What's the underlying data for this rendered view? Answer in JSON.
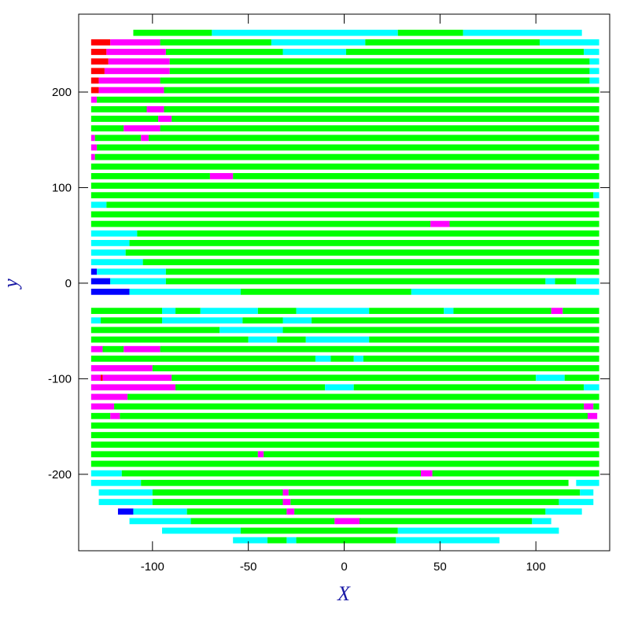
{
  "chart_data": {
    "type": "strip-map",
    "xlabel": "X",
    "ylabel": "y",
    "xlim": [
      -138.5,
      138.5
    ],
    "ylim": [
      -280,
      281.5
    ],
    "xticks": [
      -100,
      -50,
      0,
      50,
      100
    ],
    "yticks": [
      -200,
      -100,
      0,
      100,
      200
    ],
    "strip_height": 6.4,
    "rows": [
      {
        "y": 262,
        "segments": [
          [
            -110,
            -69,
            "#00ff00"
          ],
          [
            -69,
            28,
            "#00ffff"
          ],
          [
            28,
            62,
            "#00ff00"
          ],
          [
            62,
            124,
            "#00ffff"
          ]
        ]
      },
      {
        "y": 252,
        "segments": [
          [
            -132,
            -122,
            "#ff0000"
          ],
          [
            -122,
            -96,
            "#ff00ff"
          ],
          [
            -96,
            -38,
            "#00ff00"
          ],
          [
            -38,
            11,
            "#00ffff"
          ],
          [
            11,
            102,
            "#00ff00"
          ],
          [
            102,
            133,
            "#00ffff"
          ]
        ]
      },
      {
        "y": 242,
        "segments": [
          [
            -132,
            -124,
            "#ff0000"
          ],
          [
            -124,
            -93,
            "#ff00ff"
          ],
          [
            -93,
            -32,
            "#00ff00"
          ],
          [
            -32,
            1,
            "#00ffff"
          ],
          [
            1,
            125,
            "#00ff00"
          ],
          [
            125,
            133,
            "#00ffff"
          ]
        ]
      },
      {
        "y": 232,
        "segments": [
          [
            -132,
            -123,
            "#ff0000"
          ],
          [
            -123,
            -91,
            "#ff00ff"
          ],
          [
            -91,
            128,
            "#00ff00"
          ],
          [
            128,
            133,
            "#00ffff"
          ]
        ]
      },
      {
        "y": 222,
        "segments": [
          [
            -132,
            -125,
            "#ff0000"
          ],
          [
            -125,
            -91,
            "#ff00ff"
          ],
          [
            -91,
            128,
            "#00ff00"
          ],
          [
            128,
            133,
            "#00ffff"
          ]
        ]
      },
      {
        "y": 212,
        "segments": [
          [
            -132,
            -128,
            "#ff0000"
          ],
          [
            -128,
            -96,
            "#ff00ff"
          ],
          [
            -96,
            128,
            "#00ff00"
          ],
          [
            128,
            133,
            "#00ffff"
          ]
        ]
      },
      {
        "y": 202,
        "segments": [
          [
            -132,
            -128,
            "#ff0000"
          ],
          [
            -128,
            -94,
            "#ff00ff"
          ],
          [
            -94,
            133,
            "#00ff00"
          ]
        ]
      },
      {
        "y": 192,
        "segments": [
          [
            -132,
            -129,
            "#ff00ff"
          ],
          [
            -129,
            133,
            "#00ff00"
          ]
        ]
      },
      {
        "y": 182,
        "segments": [
          [
            -132,
            -103,
            "#00ff00"
          ],
          [
            -103,
            -94,
            "#ff00ff"
          ],
          [
            -94,
            133,
            "#00ff00"
          ]
        ]
      },
      {
        "y": 172,
        "segments": [
          [
            -132,
            -97,
            "#00ff00"
          ],
          [
            -97,
            -90,
            "#ff00ff"
          ],
          [
            -90,
            133,
            "#00ff00"
          ]
        ]
      },
      {
        "y": 162,
        "segments": [
          [
            -132,
            -115,
            "#00ff00"
          ],
          [
            -115,
            -96,
            "#ff00ff"
          ],
          [
            -96,
            133,
            "#00ff00"
          ]
        ]
      },
      {
        "y": 152,
        "segments": [
          [
            -132,
            -130,
            "#ff00ff"
          ],
          [
            -130,
            -106,
            "#00ff00"
          ],
          [
            -106,
            -102,
            "#ff00ff"
          ],
          [
            -102,
            133,
            "#00ff00"
          ]
        ]
      },
      {
        "y": 142,
        "segments": [
          [
            -132,
            -129,
            "#ff00ff"
          ],
          [
            -129,
            133,
            "#00ff00"
          ]
        ]
      },
      {
        "y": 132,
        "segments": [
          [
            -132,
            -130,
            "#ff00ff"
          ],
          [
            -130,
            133,
            "#00ff00"
          ]
        ]
      },
      {
        "y": 122,
        "segments": [
          [
            -132,
            133,
            "#00ff00"
          ]
        ]
      },
      {
        "y": 112,
        "segments": [
          [
            -132,
            -70,
            "#00ff00"
          ],
          [
            -70,
            -58,
            "#ff00ff"
          ],
          [
            -58,
            133,
            "#00ff00"
          ]
        ]
      },
      {
        "y": 102,
        "segments": [
          [
            -132,
            133,
            "#00ff00"
          ]
        ]
      },
      {
        "y": 92,
        "segments": [
          [
            -132,
            130,
            "#00ff00"
          ],
          [
            130,
            133,
            "#00ffff"
          ]
        ]
      },
      {
        "y": 82,
        "segments": [
          [
            -132,
            -124,
            "#00ffff"
          ],
          [
            -124,
            133,
            "#00ff00"
          ]
        ]
      },
      {
        "y": 72,
        "segments": [
          [
            -132,
            133,
            "#00ff00"
          ]
        ]
      },
      {
        "y": 62,
        "segments": [
          [
            -132,
            45,
            "#00ff00"
          ],
          [
            45,
            55,
            "#ff00ff"
          ],
          [
            55,
            133,
            "#00ff00"
          ]
        ]
      },
      {
        "y": 52,
        "segments": [
          [
            -132,
            -108,
            "#00ffff"
          ],
          [
            -108,
            133,
            "#00ff00"
          ]
        ]
      },
      {
        "y": 42,
        "segments": [
          [
            -132,
            -112,
            "#00ffff"
          ],
          [
            -112,
            133,
            "#00ff00"
          ]
        ]
      },
      {
        "y": 32,
        "segments": [
          [
            -132,
            -114,
            "#00ffff"
          ],
          [
            -114,
            133,
            "#00ff00"
          ]
        ]
      },
      {
        "y": 22,
        "segments": [
          [
            -132,
            -105,
            "#00ffff"
          ],
          [
            -105,
            133,
            "#00ff00"
          ]
        ]
      },
      {
        "y": 12,
        "segments": [
          [
            -132,
            -129,
            "#0000ff"
          ],
          [
            -129,
            -93,
            "#00ffff"
          ],
          [
            -93,
            133,
            "#00ff00"
          ]
        ]
      },
      {
        "y": 2,
        "segments": [
          [
            -132,
            -122,
            "#0000ff"
          ],
          [
            -122,
            -93,
            "#00ffff"
          ],
          [
            -93,
            105,
            "#00ff00"
          ],
          [
            105,
            110,
            "#00ffff"
          ],
          [
            110,
            121,
            "#00ff00"
          ],
          [
            121,
            133,
            "#00ffff"
          ]
        ]
      },
      {
        "y": -9,
        "segments": [
          [
            -132,
            -112,
            "#0000ff"
          ],
          [
            -112,
            -54,
            "#00ffff"
          ],
          [
            -54,
            35,
            "#00ff00"
          ],
          [
            35,
            133,
            "#00ffff"
          ]
        ]
      },
      {
        "y": -29,
        "segments": [
          [
            -132,
            -95,
            "#00ff00"
          ],
          [
            -95,
            -88,
            "#00ffff"
          ],
          [
            -88,
            -75,
            "#00ff00"
          ],
          [
            -75,
            -45,
            "#00ffff"
          ],
          [
            -45,
            -25,
            "#00ff00"
          ],
          [
            -25,
            13,
            "#00ffff"
          ],
          [
            13,
            52,
            "#00ff00"
          ],
          [
            52,
            57,
            "#00ffff"
          ],
          [
            57,
            108,
            "#00ff00"
          ],
          [
            108,
            114,
            "#ff00ff"
          ],
          [
            114,
            133,
            "#00ff00"
          ]
        ]
      },
      {
        "y": -39,
        "segments": [
          [
            -132,
            -127,
            "#00ffff"
          ],
          [
            -127,
            -95,
            "#00ff00"
          ],
          [
            -95,
            -53,
            "#00ffff"
          ],
          [
            -53,
            -32,
            "#00ff00"
          ],
          [
            -32,
            -17,
            "#00ffff"
          ],
          [
            -17,
            133,
            "#00ff00"
          ]
        ]
      },
      {
        "y": -49,
        "segments": [
          [
            -132,
            -65,
            "#00ff00"
          ],
          [
            -65,
            -32,
            "#00ffff"
          ],
          [
            -32,
            133,
            "#00ff00"
          ]
        ]
      },
      {
        "y": -59,
        "segments": [
          [
            -132,
            -50,
            "#00ff00"
          ],
          [
            -50,
            -35,
            "#00ffff"
          ],
          [
            -35,
            -20,
            "#00ff00"
          ],
          [
            -20,
            13,
            "#00ffff"
          ],
          [
            13,
            133,
            "#00ff00"
          ]
        ]
      },
      {
        "y": -69,
        "segments": [
          [
            -132,
            -126,
            "#ff00ff"
          ],
          [
            -126,
            -115,
            "#00ff00"
          ],
          [
            -115,
            -96,
            "#ff00ff"
          ],
          [
            -96,
            133,
            "#00ff00"
          ]
        ]
      },
      {
        "y": -79,
        "segments": [
          [
            -132,
            -15,
            "#00ff00"
          ],
          [
            -15,
            -7,
            "#00ffff"
          ],
          [
            -7,
            5,
            "#00ff00"
          ],
          [
            5,
            10,
            "#00ffff"
          ],
          [
            10,
            133,
            "#00ff00"
          ]
        ]
      },
      {
        "y": -89,
        "segments": [
          [
            -132,
            -100,
            "#ff00ff"
          ],
          [
            -100,
            133,
            "#00ff00"
          ]
        ]
      },
      {
        "y": -99,
        "segments": [
          [
            -132,
            -127,
            "#ff00ff"
          ],
          [
            -127,
            -126,
            "#ff0000"
          ],
          [
            -126,
            -90,
            "#ff00ff"
          ],
          [
            -90,
            100,
            "#00ff00"
          ],
          [
            100,
            115,
            "#00ffff"
          ],
          [
            115,
            133,
            "#00ff00"
          ]
        ]
      },
      {
        "y": -109,
        "segments": [
          [
            -132,
            -88,
            "#ff00ff"
          ],
          [
            -88,
            -10,
            "#00ff00"
          ],
          [
            -10,
            5,
            "#00ffff"
          ],
          [
            5,
            125,
            "#00ff00"
          ],
          [
            125,
            133,
            "#00ffff"
          ]
        ]
      },
      {
        "y": -119,
        "segments": [
          [
            -132,
            -113,
            "#ff00ff"
          ],
          [
            -113,
            133,
            "#00ff00"
          ]
        ]
      },
      {
        "y": -129,
        "segments": [
          [
            -132,
            -120,
            "#ff00ff"
          ],
          [
            -120,
            125,
            "#00ff00"
          ],
          [
            125,
            130,
            "#ff00ff"
          ],
          [
            130,
            133,
            "#00ff00"
          ]
        ]
      },
      {
        "y": -139,
        "segments": [
          [
            -132,
            -122,
            "#00ff00"
          ],
          [
            -122,
            -117,
            "#ff00ff"
          ],
          [
            -117,
            127,
            "#00ff00"
          ],
          [
            127,
            132,
            "#ff00ff"
          ]
        ]
      },
      {
        "y": -149,
        "segments": [
          [
            -132,
            133,
            "#00ff00"
          ]
        ]
      },
      {
        "y": -159,
        "segments": [
          [
            -132,
            133,
            "#00ff00"
          ]
        ]
      },
      {
        "y": -169,
        "segments": [
          [
            -132,
            133,
            "#00ff00"
          ]
        ]
      },
      {
        "y": -179,
        "segments": [
          [
            -132,
            -45,
            "#00ff00"
          ],
          [
            -45,
            -42,
            "#ff00ff"
          ],
          [
            -42,
            133,
            "#00ff00"
          ]
        ]
      },
      {
        "y": -189,
        "segments": [
          [
            -132,
            133,
            "#00ff00"
          ]
        ]
      },
      {
        "y": -199,
        "segments": [
          [
            -132,
            -116,
            "#00ffff"
          ],
          [
            -116,
            40,
            "#00ff00"
          ],
          [
            40,
            46,
            "#ff00ff"
          ],
          [
            46,
            133,
            "#00ff00"
          ]
        ]
      },
      {
        "y": -209,
        "segments": [
          [
            -132,
            -106,
            "#00ffff"
          ],
          [
            -106,
            117,
            "#00ff00"
          ],
          [
            121,
            133,
            "#00ffff"
          ]
        ]
      },
      {
        "y": -219,
        "segments": [
          [
            -128,
            -100,
            "#00ffff"
          ],
          [
            -100,
            -32,
            "#00ff00"
          ],
          [
            -32,
            -29,
            "#ff00ff"
          ],
          [
            -29,
            123,
            "#00ff00"
          ],
          [
            123,
            130,
            "#00ffff"
          ]
        ]
      },
      {
        "y": -229,
        "segments": [
          [
            -128,
            -100,
            "#00ffff"
          ],
          [
            -100,
            -32,
            "#00ff00"
          ],
          [
            -32,
            -28,
            "#ff00ff"
          ],
          [
            -28,
            112,
            "#00ff00"
          ],
          [
            112,
            130,
            "#00ffff"
          ]
        ]
      },
      {
        "y": -239,
        "segments": [
          [
            -118,
            -110,
            "#0000ff"
          ],
          [
            -110,
            -82,
            "#00ffff"
          ],
          [
            -82,
            -30,
            "#00ff00"
          ],
          [
            -30,
            -26,
            "#ff00ff"
          ],
          [
            -26,
            105,
            "#00ff00"
          ],
          [
            105,
            124,
            "#00ffff"
          ]
        ]
      },
      {
        "y": -249,
        "segments": [
          [
            -112,
            -80,
            "#00ffff"
          ],
          [
            -80,
            -5,
            "#00ff00"
          ],
          [
            -5,
            8,
            "#ff00ff"
          ],
          [
            8,
            98,
            "#00ff00"
          ],
          [
            98,
            108,
            "#00ffff"
          ]
        ]
      },
      {
        "y": -259,
        "segments": [
          [
            -95,
            -54,
            "#00ffff"
          ],
          [
            -54,
            28,
            "#00ff00"
          ],
          [
            28,
            112,
            "#00ffff"
          ]
        ]
      },
      {
        "y": -269,
        "segments": [
          [
            -58,
            -40,
            "#00ffff"
          ],
          [
            -40,
            -30,
            "#00ff00"
          ],
          [
            -30,
            -25,
            "#00ffff"
          ],
          [
            -25,
            27,
            "#00ff00"
          ],
          [
            27,
            81,
            "#00ffff"
          ]
        ]
      }
    ]
  }
}
